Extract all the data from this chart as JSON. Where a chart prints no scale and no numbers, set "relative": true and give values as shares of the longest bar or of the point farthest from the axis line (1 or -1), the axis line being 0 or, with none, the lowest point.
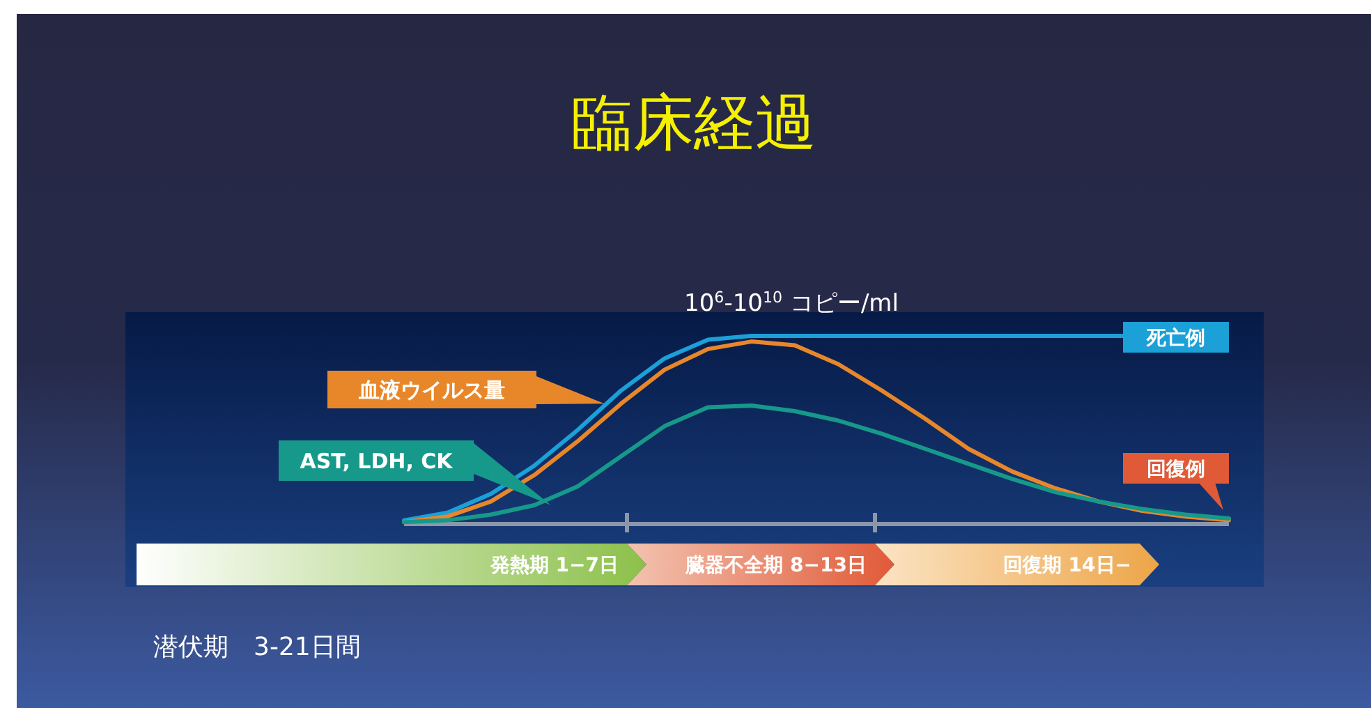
{
  "chart_data": {
    "type": "line",
    "title": "臨床経過",
    "relative": true,
    "categories": [
      null,
      null,
      null,
      null,
      null,
      null,
      null,
      null,
      null,
      null,
      null,
      null,
      null,
      null,
      null,
      null,
      null,
      null,
      null,
      null
    ],
    "series": [
      {
        "name": "死亡例",
        "color": "#1ba0d8",
        "values": [
          0.02,
          0.06,
          0.16,
          0.31,
          0.5,
          0.71,
          0.88,
          0.98,
          1,
          1,
          1,
          1,
          1,
          1,
          1,
          1,
          1,
          null,
          null,
          null
        ]
      },
      {
        "name": "血液ウイルス量",
        "color": "#e8872a",
        "values": [
          0.01,
          0.04,
          0.12,
          0.26,
          0.44,
          0.64,
          0.82,
          0.93,
          0.97,
          0.95,
          0.85,
          0.71,
          0.56,
          0.4,
          0.28,
          0.19,
          0.12,
          0.07,
          0.04,
          0.02
        ]
      },
      {
        "name": "AST, LDH, CK",
        "color": "#16998a",
        "values": [
          0.01,
          0.02,
          0.05,
          0.1,
          0.2,
          0.36,
          0.52,
          0.62,
          0.63,
          0.6,
          0.55,
          0.48,
          0.4,
          0.32,
          0.24,
          0.17,
          0.12,
          0.08,
          0.05,
          0.03
        ]
      }
    ],
    "annotations": [
      "10$^{6}$-10$^{10}$ コピー/ml",
      "発熱期 1−7日",
      "臓器不全期 8−13日",
      "回復期 14日−",
      "回復例",
      "潜伏期　3-21日間"
    ]
  }
}
